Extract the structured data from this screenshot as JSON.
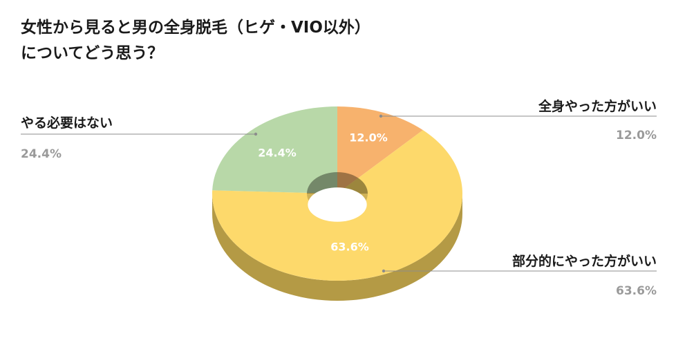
{
  "chart_data": {
    "type": "pie",
    "title_lines": [
      "女性から見ると男の全身脱毛（ヒゲ・VIO以外）",
      "についてどう思う？"
    ],
    "slices": [
      {
        "label": "全身やった方がいい",
        "value": 12.0,
        "display": "12.0%",
        "color": "#f7b26d",
        "side_color": "#b9864f"
      },
      {
        "label": "部分的にやった方がいい",
        "value": 63.6,
        "display": "63.6%",
        "color": "#fdd96b",
        "side_color": "#b49a45"
      },
      {
        "label": "やる必要はない",
        "value": 24.4,
        "display": "24.4%",
        "color": "#b8d8a8",
        "side_color": "#869e79"
      }
    ],
    "style": "3d-donut",
    "legend": "callout-labels"
  }
}
